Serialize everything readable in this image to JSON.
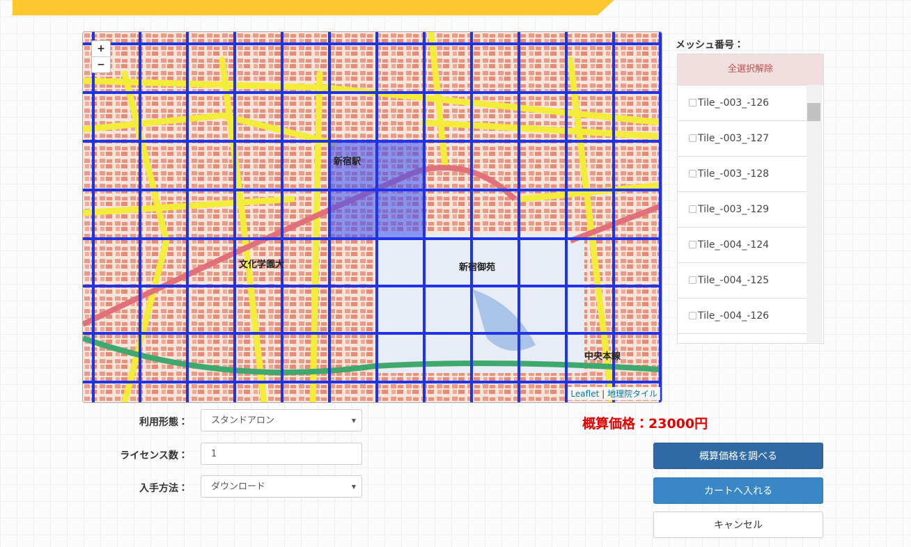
{
  "map": {
    "zoom_in": "+",
    "zoom_out": "−",
    "attribution": {
      "library": "Leaflet",
      "separator": "|",
      "tiles": "地理院タイル"
    },
    "labels": [
      "新宿御苑",
      "文化学園大",
      "中央本線",
      "新宿駅"
    ]
  },
  "mesh_panel": {
    "title": "メッシュ番号：",
    "clear_all": "全選択解除",
    "tiles": [
      "Tile_-003_-126",
      "Tile_-003_-127",
      "Tile_-003_-128",
      "Tile_-003_-129",
      "Tile_-004_-124",
      "Tile_-004_-125",
      "Tile_-004_-126"
    ]
  },
  "form": {
    "fields": [
      {
        "label": "利用形態：",
        "value": "スタンドアロン"
      },
      {
        "label": "ライセンス数：",
        "value": "1"
      },
      {
        "label": "入手方法：",
        "value": "ダウンロード"
      }
    ]
  },
  "price": "概算価格：23000円",
  "buttons": {
    "estimate": "概算価格を調べる",
    "cart": "カートへ入れる",
    "cancel": "キャンセル"
  }
}
